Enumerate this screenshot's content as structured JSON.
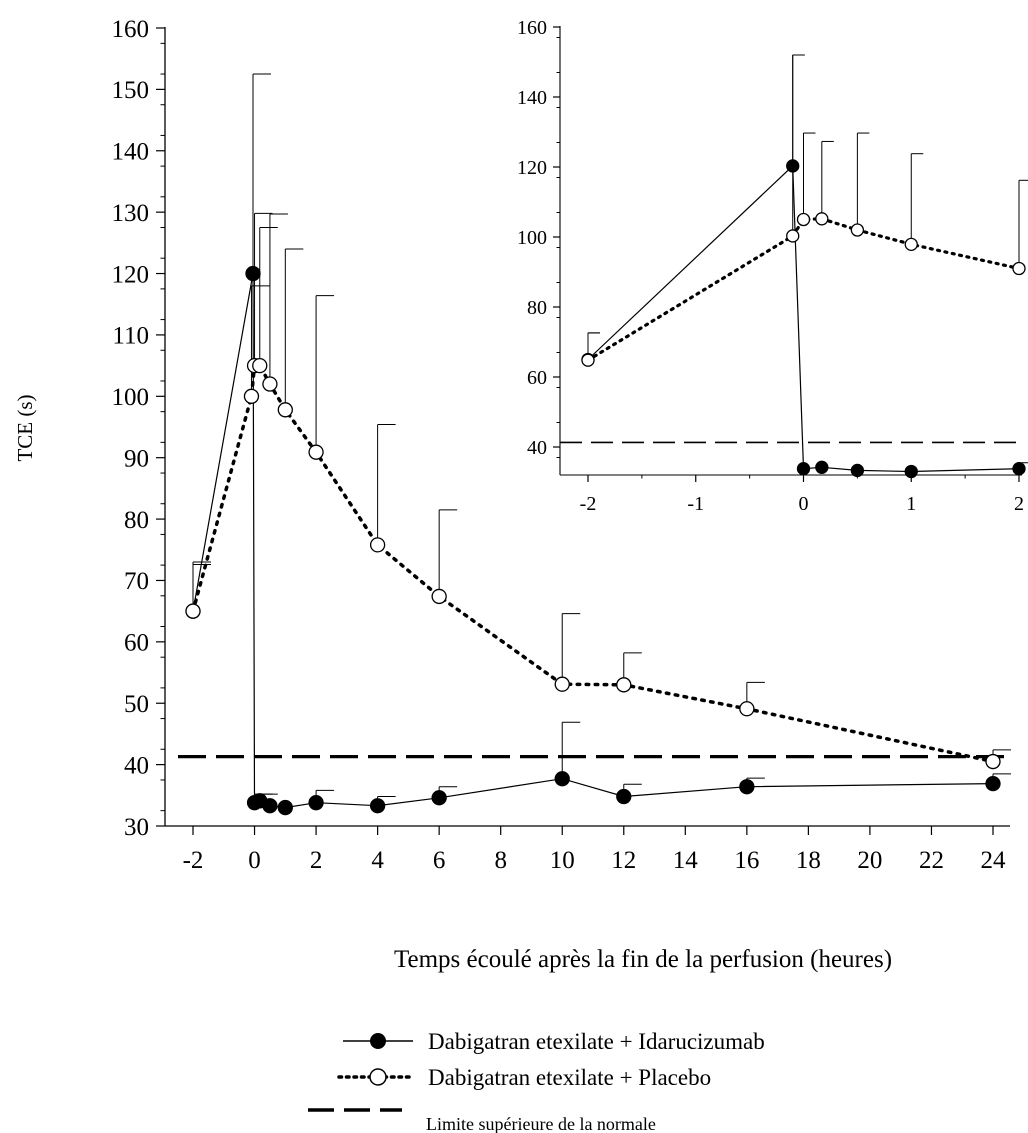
{
  "chart_data": [
    {
      "id": "main",
      "type": "line",
      "ylabel": "TCE (s)",
      "xlabel": "Temps écoulé après la fin de la perfusion (heures)",
      "xlim": [
        -2,
        24
      ],
      "ylim": [
        30,
        160
      ],
      "xticks": [
        -2,
        0,
        2,
        4,
        6,
        8,
        10,
        12,
        14,
        16,
        18,
        20,
        22,
        24
      ],
      "yticks": [
        30,
        40,
        50,
        60,
        70,
        80,
        90,
        100,
        110,
        120,
        130,
        140,
        150,
        160
      ],
      "series": [
        {
          "name": "Dabigatran etexilate + Idarucizumab",
          "marker": "filled-circle",
          "line": "solid",
          "x": [
            -2,
            -0.05,
            0,
            0.17,
            0.5,
            1,
            2,
            4,
            6,
            10,
            12,
            16,
            24
          ],
          "y": [
            65,
            120,
            33.8,
            34.1,
            33.3,
            33.0,
            33.8,
            33.3,
            34.6,
            37.7,
            34.8,
            36.4,
            36.9
          ],
          "err_upper": [
            73,
            152.5,
            35.2,
            35.2,
            null,
            null,
            35.8,
            34.8,
            36.4,
            46.9,
            36.8,
            37.8,
            38.5
          ]
        },
        {
          "name": "Dabigatran etexilate + Placebo",
          "marker": "open-circle",
          "line": "dotted",
          "x": [
            -2,
            -0.1,
            0,
            0.17,
            0.5,
            1,
            2,
            4,
            6,
            10,
            12,
            16,
            24
          ],
          "y": [
            65,
            100,
            105,
            105,
            102,
            97.8,
            90.9,
            75.8,
            67.4,
            53.1,
            53.0,
            49.1,
            40.5
          ],
          "err_upper": [
            72.6,
            118,
            129.8,
            127.5,
            129.7,
            124,
            116.4,
            95.4,
            81.5,
            64.6,
            58.2,
            53.4,
            42.4
          ]
        }
      ],
      "reference_line": {
        "name": "Limite supérieure de la normale",
        "y": 41.3,
        "style": "dashed"
      }
    },
    {
      "id": "inset",
      "type": "line",
      "xlim": [
        -2,
        2
      ],
      "ylim": [
        32,
        160
      ],
      "xticks": [
        -2,
        -1,
        0,
        1,
        2
      ],
      "yticks": [
        40,
        60,
        80,
        100,
        120,
        140,
        160
      ],
      "series": [
        {
          "name": "Dabigatran etexilate + Idarucizumab",
          "x": [
            -2,
            -0.1,
            0,
            0.17,
            0.5,
            1,
            2
          ],
          "y": [
            65,
            120.3,
            33.8,
            34.2,
            33.3,
            33.0,
            33.8
          ],
          "err_upper": [
            72.6,
            152,
            null,
            null,
            null,
            null,
            35.5
          ]
        },
        {
          "name": "Dabigatran etexilate + Placebo",
          "x": [
            -2,
            -0.1,
            0,
            0.17,
            0.5,
            1,
            2
          ],
          "y": [
            64.8,
            100.3,
            105,
            105.2,
            102,
            97.9,
            91
          ],
          "err_upper": [
            72.6,
            152,
            129.7,
            127.3,
            129.7,
            123.8,
            116.2
          ]
        }
      ],
      "reference_line": {
        "y": 41.3,
        "style": "dashed"
      }
    }
  ],
  "legend": {
    "items": [
      "Dabigatran etexilate + Idarucizumab",
      "Dabigatran etexilate + Placebo",
      "Limite supérieure de la normale"
    ]
  }
}
